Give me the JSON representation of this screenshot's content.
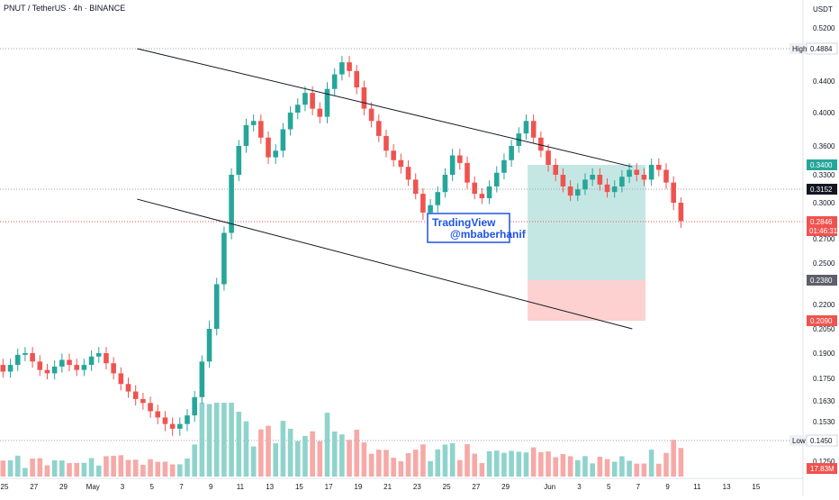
{
  "header": {
    "symbol": "PNUT / TetherUS · 4h · BINANCE",
    "currency": "USDT"
  },
  "watermark": {
    "line1": "TradingView",
    "line2": "@mbaberhanif"
  },
  "colors": {
    "up": "#26a69a",
    "down": "#ef5350",
    "volume_up": "#8fd3cc",
    "volume_down": "#f6a9a7",
    "target_zone": "#b2dfdb",
    "stop_zone": "#fbc9c7",
    "watermark": "#1e53e5"
  },
  "chart_data": {
    "type": "candlestick",
    "interval": "4h",
    "x_ticks": [
      "25",
      "27",
      "29",
      "May",
      "3",
      "5",
      "7",
      "9",
      "11",
      "13",
      "15",
      "17",
      "19",
      "21",
      "23",
      "25",
      "27",
      "29",
      "Jun",
      "3",
      "5",
      "7",
      "9",
      "11",
      "13",
      "15"
    ],
    "y_ticks": [
      "0.5200",
      "0.4884",
      "0.4400",
      "0.4000",
      "0.3600",
      "0.3300",
      "0.3000",
      "0.2700",
      "0.2500",
      "0.2200",
      "0.2050",
      "0.1900",
      "0.1750",
      "0.1630",
      "0.1530",
      "0.1450",
      "0.1250"
    ],
    "price_labels": [
      {
        "label": "High",
        "value": "0.4884",
        "kind": "high"
      },
      {
        "label": "",
        "value": "0.3400",
        "kind": "target"
      },
      {
        "label": "",
        "value": "0.3152",
        "kind": "level"
      },
      {
        "label": "",
        "value": "0.2846",
        "kind": "current",
        "countdown": "01:46:31"
      },
      {
        "label": "",
        "value": "0.2380",
        "kind": "entry"
      },
      {
        "label": "",
        "value": "0.2090",
        "kind": "stop"
      },
      {
        "label": "Low",
        "value": "0.1450",
        "kind": "low"
      },
      {
        "label": "",
        "value": "17.83M",
        "kind": "volume"
      }
    ],
    "horizontal_lines": [
      {
        "name": "high",
        "value": 0.4884
      },
      {
        "name": "level",
        "value": 0.3152
      },
      {
        "name": "current",
        "value": 0.2846
      },
      {
        "name": "low",
        "value": 0.145
      }
    ],
    "trendlines": [
      {
        "name": "channel-top",
        "from": [
          9.0,
          0.4884
        ],
        "to": [
          42.6,
          0.338
        ]
      },
      {
        "name": "channel-bottom",
        "from": [
          9.0,
          0.304
        ],
        "to": [
          42.6,
          0.205
        ]
      }
    ],
    "position": {
      "type": "long",
      "start_day": 35.5,
      "end_day": 43.5,
      "target": 0.34,
      "entry": 0.238,
      "stop": 0.209
    },
    "candles": [
      [
        -3.6,
        0.17
      ],
      [
        -3.1,
        0.177
      ],
      [
        -2.6,
        0.181
      ],
      [
        -2.1,
        0.186
      ],
      [
        -1.6,
        0.19
      ],
      [
        -1.1,
        0.188
      ],
      [
        -0.6,
        0.183
      ],
      [
        -0.1,
        0.179
      ],
      [
        0.4,
        0.183
      ],
      [
        0.9,
        0.189
      ],
      [
        1.4,
        0.19
      ],
      [
        1.9,
        0.185
      ],
      [
        2.4,
        0.18
      ],
      [
        2.9,
        0.178
      ],
      [
        3.4,
        0.182
      ],
      [
        3.9,
        0.186
      ],
      [
        4.4,
        0.183
      ],
      [
        4.9,
        0.18
      ],
      [
        5.4,
        0.183
      ],
      [
        5.9,
        0.188
      ],
      [
        6.4,
        0.19
      ],
      [
        6.9,
        0.184
      ],
      [
        7.4,
        0.178
      ],
      [
        7.9,
        0.172
      ],
      [
        8.4,
        0.168
      ],
      [
        8.9,
        0.164
      ],
      [
        9.4,
        0.162
      ],
      [
        9.9,
        0.158
      ],
      [
        10.4,
        0.155
      ],
      [
        10.9,
        0.152
      ],
      [
        11.4,
        0.15
      ],
      [
        11.9,
        0.152
      ],
      [
        12.4,
        0.156
      ],
      [
        12.9,
        0.165
      ],
      [
        13.4,
        0.185
      ],
      [
        13.9,
        0.205
      ],
      [
        14.4,
        0.235
      ],
      [
        14.9,
        0.275
      ],
      [
        15.4,
        0.33
      ],
      [
        15.9,
        0.36
      ],
      [
        16.4,
        0.385
      ],
      [
        16.9,
        0.39
      ],
      [
        17.4,
        0.37
      ],
      [
        17.9,
        0.348
      ],
      [
        18.4,
        0.355
      ],
      [
        18.9,
        0.38
      ],
      [
        19.4,
        0.4
      ],
      [
        19.9,
        0.41
      ],
      [
        20.4,
        0.425
      ],
      [
        20.9,
        0.405
      ],
      [
        21.4,
        0.395
      ],
      [
        21.9,
        0.43
      ],
      [
        22.4,
        0.45
      ],
      [
        22.9,
        0.468
      ],
      [
        23.4,
        0.455
      ],
      [
        23.9,
        0.432
      ],
      [
        24.4,
        0.405
      ],
      [
        24.9,
        0.39
      ],
      [
        25.4,
        0.372
      ],
      [
        25.9,
        0.355
      ],
      [
        26.4,
        0.345
      ],
      [
        26.9,
        0.338
      ],
      [
        27.4,
        0.325
      ],
      [
        27.9,
        0.31
      ],
      [
        28.4,
        0.292
      ],
      [
        28.9,
        0.298
      ],
      [
        29.4,
        0.312
      ],
      [
        29.9,
        0.33
      ],
      [
        30.4,
        0.35
      ],
      [
        30.9,
        0.342
      ],
      [
        31.4,
        0.322
      ],
      [
        31.9,
        0.31
      ],
      [
        32.4,
        0.305
      ],
      [
        32.9,
        0.318
      ],
      [
        33.4,
        0.332
      ],
      [
        33.9,
        0.345
      ],
      [
        34.4,
        0.36
      ],
      [
        34.9,
        0.375
      ],
      [
        35.4,
        0.39
      ],
      [
        35.9,
        0.37
      ],
      [
        36.4,
        0.355
      ],
      [
        36.9,
        0.34
      ],
      [
        37.4,
        0.33
      ],
      [
        37.9,
        0.318
      ],
      [
        38.4,
        0.308
      ],
      [
        38.9,
        0.315
      ],
      [
        39.4,
        0.325
      ],
      [
        39.9,
        0.33
      ],
      [
        40.4,
        0.32
      ],
      [
        40.9,
        0.312
      ],
      [
        41.4,
        0.318
      ],
      [
        41.9,
        0.328
      ],
      [
        42.4,
        0.335
      ],
      [
        42.9,
        0.33
      ],
      [
        43.4,
        0.325
      ],
      [
        43.9,
        0.34
      ],
      [
        44.4,
        0.335
      ],
      [
        44.9,
        0.322
      ],
      [
        45.4,
        0.3
      ],
      [
        45.9,
        0.285
      ]
    ]
  }
}
